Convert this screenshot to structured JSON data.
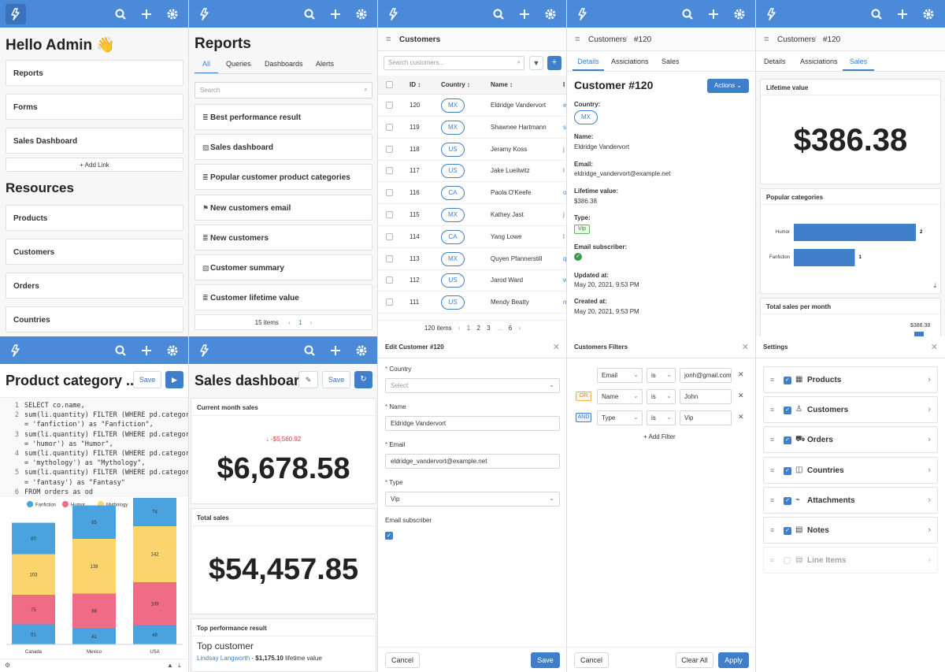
{
  "home": {
    "greeting": "Hello Admin 👋",
    "links": [
      "Reports",
      "Forms",
      "Sales Dashboard"
    ],
    "add_link": "Add Link",
    "resources_title": "Resources",
    "resources": [
      "Products",
      "Customers",
      "Orders",
      "Countries"
    ]
  },
  "reports": {
    "title": "Reports",
    "tabs": [
      "All",
      "Queries",
      "Dashboards",
      "Alerts"
    ],
    "search_placeholder": "Search",
    "items": [
      "Best performance result",
      "Sales dashboard",
      "Popular customer product categories",
      "New customers email",
      "New customers",
      "Customer summary",
      "Customer lifetime value"
    ],
    "count": "15 items",
    "page": "1"
  },
  "customers": {
    "title": "Customers",
    "search_placeholder": "Search customers...",
    "columns": [
      "ID",
      "Country",
      "Name",
      "I"
    ],
    "rows": [
      [
        "120",
        "MX",
        "Eldridge Vandervort",
        "e"
      ],
      [
        "119",
        "MX",
        "Shawnee Hartmann",
        "s"
      ],
      [
        "118",
        "US",
        "Jeramy Koss",
        "j"
      ],
      [
        "117",
        "US",
        "Jake Lueilwitz",
        "l"
      ],
      [
        "116",
        "CA",
        "Paola O'Keefe",
        "o"
      ],
      [
        "115",
        "MX",
        "Kathey Jast",
        "j"
      ],
      [
        "114",
        "CA",
        "Yang Lowe",
        "l"
      ],
      [
        "113",
        "MX",
        "Quyen Pfannerstill",
        "q"
      ],
      [
        "112",
        "US",
        "Jarod Ward",
        "w"
      ],
      [
        "111",
        "US",
        "Mendy Beatty",
        "m"
      ]
    ],
    "count": "120 items",
    "pages": [
      "1",
      "2",
      "3",
      "...",
      "6"
    ]
  },
  "detail": {
    "breadcrumb": "Customers",
    "id": "#120",
    "tabs": [
      "Details",
      "Assiciations",
      "Sales"
    ],
    "title": "Customer #120",
    "actions": "Actions",
    "fields": [
      {
        "label": "Country:",
        "value": "MX"
      },
      {
        "label": "Name:",
        "value": "Eldridge Vandervort"
      },
      {
        "label": "Email:",
        "value": "eldridge_vandervort@example.net"
      },
      {
        "label": "Lifetime value:",
        "value": "$386.38"
      },
      {
        "label": "Type:",
        "value": "Vip"
      },
      {
        "label": "Email subscriber:",
        "value": ""
      },
      {
        "label": "Updated at:",
        "value": "May 20, 2021, 9:53 PM"
      },
      {
        "label": "Created at:",
        "value": "May 20, 2021, 9:53 PM"
      }
    ]
  },
  "sales": {
    "breadcrumb": "Customers",
    "id": "#120",
    "tabs": [
      "Details",
      "Assiciations",
      "Sales"
    ],
    "lifetime_title": "Lifetime value",
    "lifetime": "$386.38",
    "popular_title": "Popular categories",
    "cats": [
      {
        "name": "Humor",
        "value": 2
      },
      {
        "name": "Fanfiction",
        "value": 1
      }
    ],
    "monthly_title": "Total sales per month",
    "monthly_value": "$386.38"
  },
  "query": {
    "title": "Product category ...",
    "save": "Save",
    "code": [
      "SELECT co.name,",
      "sum(li.quantity) FILTER (WHERE pd.category",
      "= 'fanfiction') as \"Fanfiction\",",
      "sum(li.quantity) FILTER (WHERE pd.category",
      "= 'humor') as \"Humor\",",
      "sum(li.quantity) FILTER (WHERE pd.category",
      "= 'mythology') as \"Mythology\",",
      "sum(li.quantity) FILTER (WHERE pd.category",
      "= 'fantasy') as \"Fantasy\"",
      "FROM orders as od"
    ],
    "line_numbers": [
      "1",
      "2",
      "",
      "3",
      "",
      "4",
      "",
      "5",
      "",
      "6"
    ]
  },
  "chart_data": {
    "type": "bar",
    "stacked": true,
    "categories": [
      "Canada",
      "Mexico",
      "USA"
    ],
    "series": [
      {
        "name": "Fanfiction",
        "color": "#4aa3df",
        "values": [
          51,
          41,
          49
        ]
      },
      {
        "name": "Humor",
        "color": "#f06b85",
        "values": [
          75,
          88,
          109
        ]
      },
      {
        "name": "Mythology",
        "color": "#fbd46d",
        "values": [
          103,
          139,
          142
        ]
      },
      {
        "name": "Fantasy",
        "color": "#4aa3df",
        "values": [
          80,
          85,
          74
        ]
      }
    ]
  },
  "dash": {
    "title": "Sales dashboard",
    "save": "Save",
    "current_title": "Current month sales",
    "delta": "-$5,560.92",
    "current": "$6,678.58",
    "total_title": "Total sales",
    "total": "$54,457.85",
    "top_title": "Top performance result",
    "top_heading": "Top customer",
    "top_name": "Lindsay Langworth",
    "top_sep": " - ",
    "top_value": "$1,175.10",
    "top_suffix": " lifetime value"
  },
  "edit": {
    "title": "Edit Customer #120",
    "country_label": "Country",
    "country_placeholder": "Select",
    "name_label": "Name",
    "name_value": "Eldridge Vandervort",
    "email_label": "Email",
    "email_value": "eldridge_vandervort@example.net",
    "type_label": "Type",
    "type_value": "Vip",
    "subscriber_label": "Email subscriber",
    "cancel": "Cancel",
    "save": "Save"
  },
  "filters": {
    "title": "Customers Filters",
    "rows": [
      {
        "conj": "",
        "field": "Email",
        "op": "is",
        "value": "jonh@gmail.com"
      },
      {
        "conj": "OR",
        "field": "Name",
        "op": "is",
        "value": "John"
      },
      {
        "conj": "AND",
        "field": "Type",
        "op": "is",
        "value": "Vip"
      }
    ],
    "add_filter": "Add Filter",
    "cancel": "Cancel",
    "clear": "Clear All",
    "apply": "Apply"
  },
  "settings": {
    "title": "Settings",
    "items": [
      {
        "label": "Products",
        "checked": true
      },
      {
        "label": "Customers",
        "checked": true
      },
      {
        "label": "Orders",
        "checked": true
      },
      {
        "label": "Countries",
        "checked": true
      },
      {
        "label": "Attachments",
        "checked": true
      },
      {
        "label": "Notes",
        "checked": true
      },
      {
        "label": "Line Items",
        "checked": false
      }
    ]
  },
  "colors": {
    "nav": "#4a8ad8",
    "primary": "#3f7fc9",
    "bar": "#3f7fc9",
    "delta": "#d9363e",
    "vip": "#5cb85c"
  }
}
